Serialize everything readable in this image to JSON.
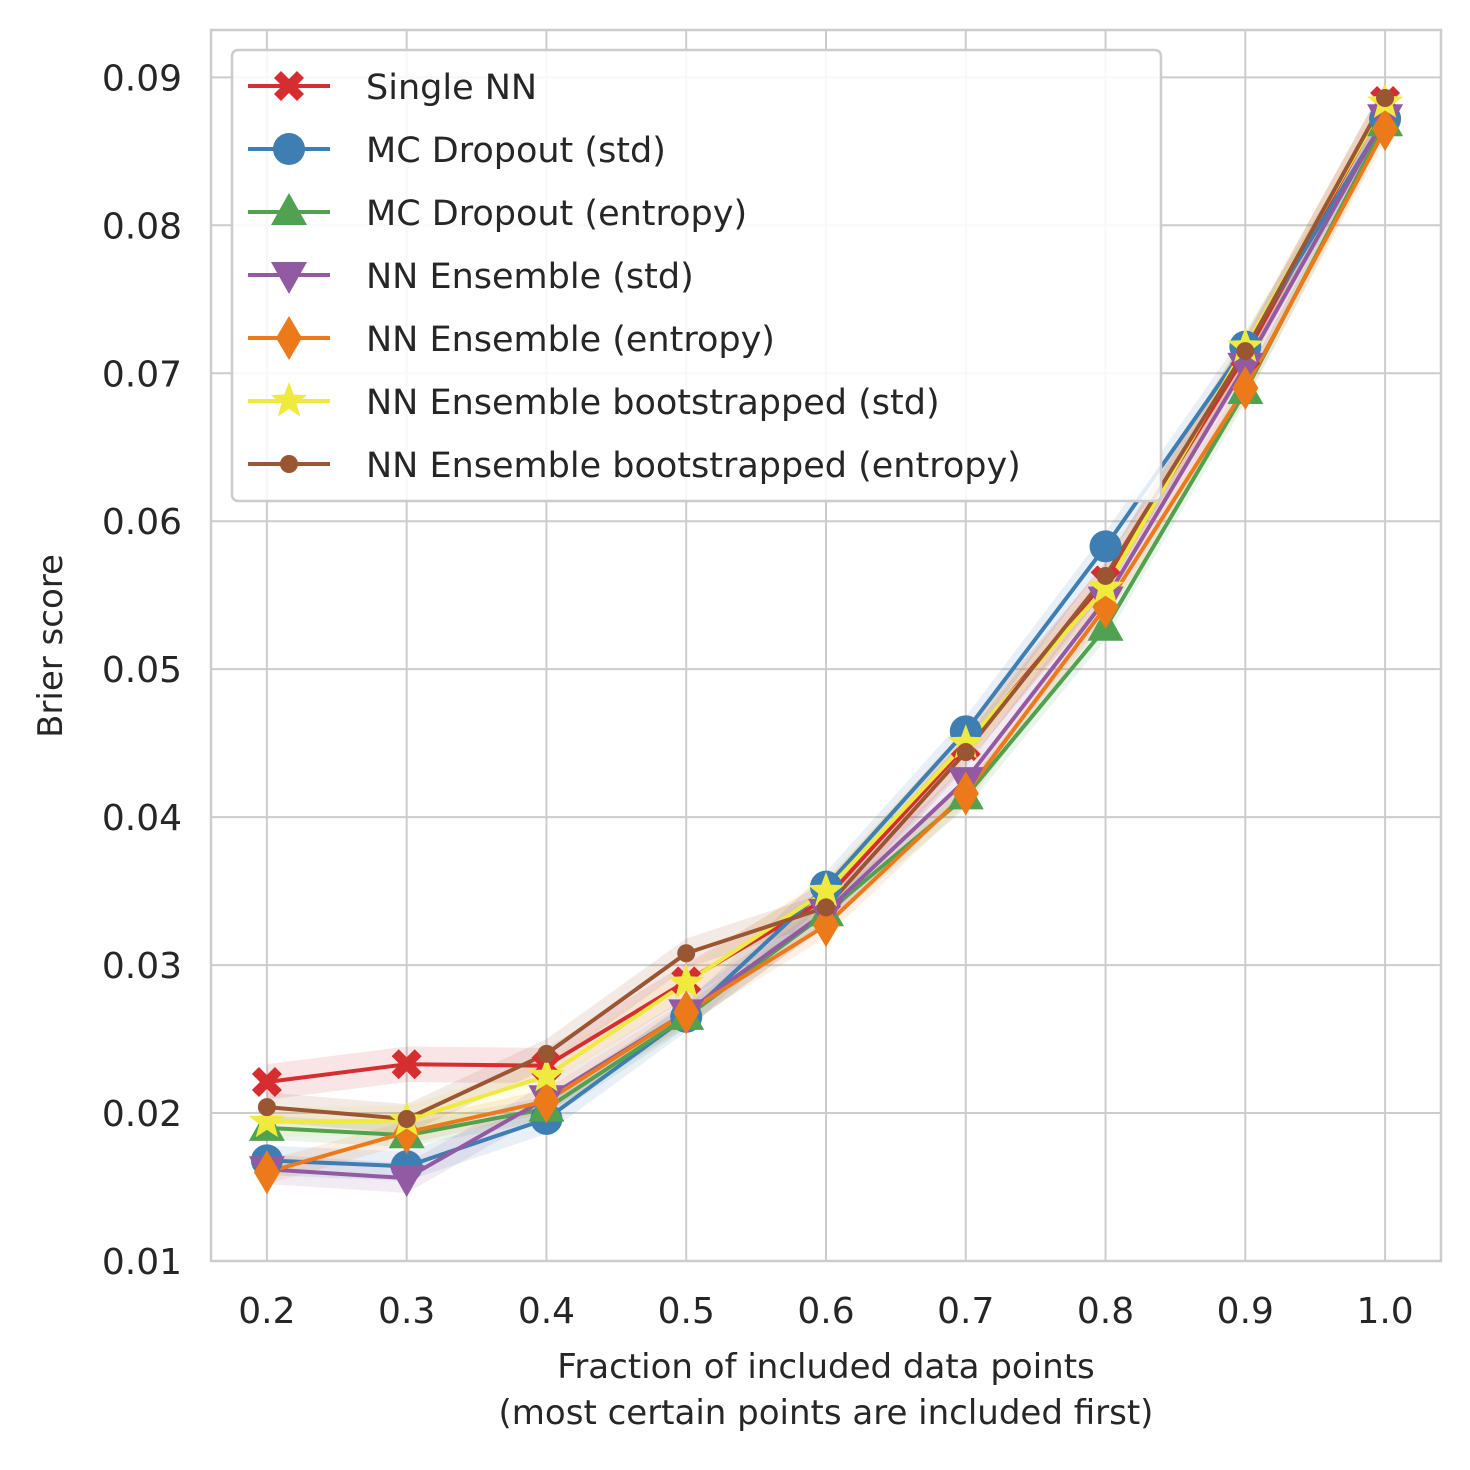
{
  "chart_data": {
    "type": "line",
    "title": "",
    "xlabel_line1": "Fraction of included data points",
    "xlabel_line2": "(most certain points are included first)",
    "ylabel": "Brier score",
    "xlim": [
      0.16,
      1.04
    ],
    "ylim": [
      0.01,
      0.0932
    ],
    "x_ticks": [
      "0.2",
      "0.3",
      "0.4",
      "0.5",
      "0.6",
      "0.7",
      "0.8",
      "0.9",
      "1.0"
    ],
    "y_ticks": [
      "0.01",
      "0.02",
      "0.03",
      "0.04",
      "0.05",
      "0.06",
      "0.07",
      "0.08",
      "0.09"
    ],
    "grid": true,
    "legend_position": "top-left",
    "x": [
      0.2,
      0.3,
      0.4,
      0.5,
      0.6,
      0.7,
      0.8,
      0.9,
      1.0
    ],
    "series": [
      {
        "name": "Single NN",
        "color": "#d62d31",
        "marker": "X",
        "values": [
          0.0221,
          0.0233,
          0.0232,
          0.0289,
          0.0345,
          0.0448,
          0.056,
          0.0712,
          0.0884
        ],
        "band": 0.0012
      },
      {
        "name": "MC Dropout (std)",
        "color": "#3f7eb3",
        "marker": "circle",
        "values": [
          0.0168,
          0.0164,
          0.0196,
          0.0265,
          0.0353,
          0.0458,
          0.0583,
          0.0718,
          0.0872
        ],
        "band": 0.001
      },
      {
        "name": "MC Dropout (entropy)",
        "color": "#50a150",
        "marker": "triangle-up",
        "values": [
          0.019,
          0.0185,
          0.0203,
          0.0265,
          0.0335,
          0.0414,
          0.0528,
          0.0688,
          0.0869
        ],
        "band": 0.0008
      },
      {
        "name": "NN Ensemble (std)",
        "color": "#915aa3",
        "marker": "triangle-down",
        "values": [
          0.0162,
          0.0156,
          0.021,
          0.0268,
          0.0336,
          0.0425,
          0.0547,
          0.0705,
          0.0873
        ],
        "band": 0.001
      },
      {
        "name": "NN Ensemble (entropy)",
        "color": "#ec7a1b",
        "marker": "diamond",
        "values": [
          0.016,
          0.0187,
          0.0208,
          0.0268,
          0.0327,
          0.0416,
          0.0542,
          0.069,
          0.0865
        ],
        "band": 0.0008
      },
      {
        "name": "NN Ensemble bootstrapped (std)",
        "color": "#eeea3e",
        "marker": "star",
        "values": [
          0.0194,
          0.0195,
          0.0225,
          0.0288,
          0.035,
          0.045,
          0.0555,
          0.0718,
          0.0883
        ],
        "band": 0.001
      },
      {
        "name": "NN Ensemble bootstrapped (entropy)",
        "color": "#9a5533",
        "marker": "small-circle",
        "values": [
          0.0204,
          0.0196,
          0.024,
          0.0308,
          0.0339,
          0.0444,
          0.0563,
          0.0715,
          0.0886
        ],
        "band": 0.001
      }
    ]
  }
}
